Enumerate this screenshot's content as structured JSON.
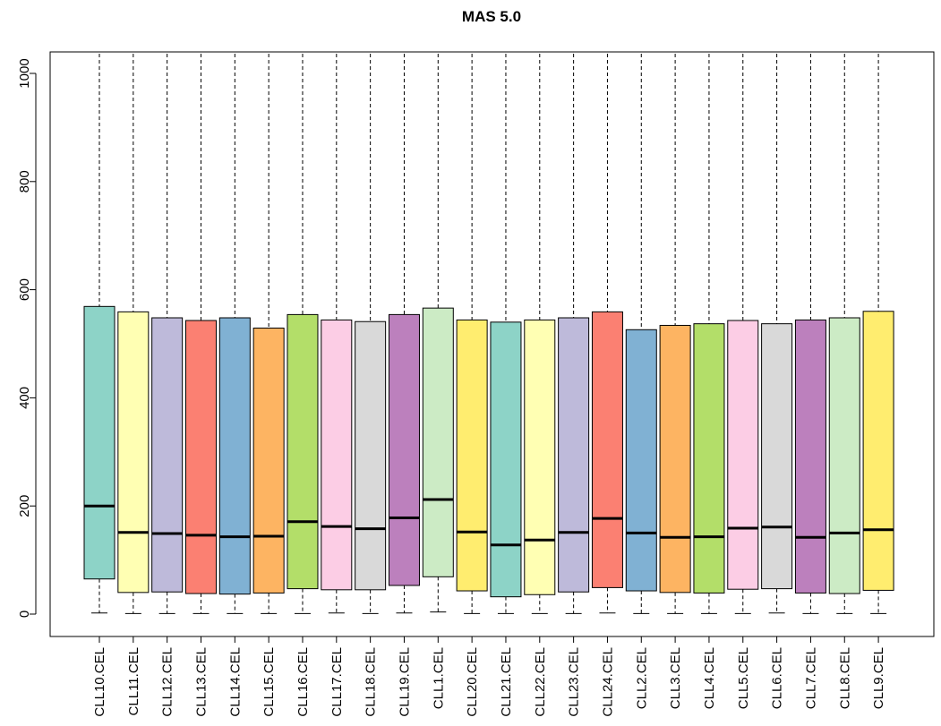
{
  "chart_data": {
    "type": "boxplot",
    "title": "MAS 5.0",
    "xlabel": "",
    "ylabel": "",
    "ylim": [
      -40,
      1040
    ],
    "yticks": [
      0,
      200,
      400,
      600,
      800,
      1000
    ],
    "grid": false,
    "legend": "none",
    "categories": [
      "CLL10.CEL",
      "CLL11.CEL",
      "CLL12.CEL",
      "CLL13.CEL",
      "CLL14.CEL",
      "CLL15.CEL",
      "CLL16.CEL",
      "CLL17.CEL",
      "CLL18.CEL",
      "CLL19.CEL",
      "CLL1.CEL",
      "CLL20.CEL",
      "CLL21.CEL",
      "CLL22.CEL",
      "CLL23.CEL",
      "CLL24.CEL",
      "CLL2.CEL",
      "CLL3.CEL",
      "CLL4.CEL",
      "CLL5.CEL",
      "CLL6.CEL",
      "CLL7.CEL",
      "CLL8.CEL",
      "CLL9.CEL"
    ],
    "boxes": [
      {
        "min": 2,
        "q1": 65,
        "median": 200,
        "q3": 569,
        "max": 1040
      },
      {
        "min": 1,
        "q1": 40,
        "median": 151,
        "q3": 559,
        "max": 1040
      },
      {
        "min": 1,
        "q1": 41,
        "median": 149,
        "q3": 548,
        "max": 1040
      },
      {
        "min": 1,
        "q1": 38,
        "median": 146,
        "q3": 543,
        "max": 1040
      },
      {
        "min": 1,
        "q1": 37,
        "median": 143,
        "q3": 548,
        "max": 1040
      },
      {
        "min": 1,
        "q1": 39,
        "median": 144,
        "q3": 529,
        "max": 1040
      },
      {
        "min": 1,
        "q1": 47,
        "median": 171,
        "q3": 554,
        "max": 1040
      },
      {
        "min": 2,
        "q1": 45,
        "median": 162,
        "q3": 544,
        "max": 1040
      },
      {
        "min": 1,
        "q1": 45,
        "median": 158,
        "q3": 541,
        "max": 1040
      },
      {
        "min": 2,
        "q1": 53,
        "median": 178,
        "q3": 554,
        "max": 1040
      },
      {
        "min": 4,
        "q1": 69,
        "median": 212,
        "q3": 566,
        "max": 1040
      },
      {
        "min": 1,
        "q1": 43,
        "median": 152,
        "q3": 544,
        "max": 1040
      },
      {
        "min": 1,
        "q1": 32,
        "median": 128,
        "q3": 540,
        "max": 1040
      },
      {
        "min": 1,
        "q1": 36,
        "median": 137,
        "q3": 544,
        "max": 1040
      },
      {
        "min": 1,
        "q1": 41,
        "median": 151,
        "q3": 548,
        "max": 1040
      },
      {
        "min": 2,
        "q1": 49,
        "median": 177,
        "q3": 559,
        "max": 1040
      },
      {
        "min": 1,
        "q1": 43,
        "median": 150,
        "q3": 526,
        "max": 1040
      },
      {
        "min": 1,
        "q1": 40,
        "median": 142,
        "q3": 534,
        "max": 1040
      },
      {
        "min": 1,
        "q1": 39,
        "median": 143,
        "q3": 537,
        "max": 1040
      },
      {
        "min": 1,
        "q1": 46,
        "median": 159,
        "q3": 543,
        "max": 1040
      },
      {
        "min": 2,
        "q1": 47,
        "median": 161,
        "q3": 537,
        "max": 1040
      },
      {
        "min": 1,
        "q1": 39,
        "median": 142,
        "q3": 544,
        "max": 1040
      },
      {
        "min": 1,
        "q1": 38,
        "median": 150,
        "q3": 548,
        "max": 1040
      },
      {
        "min": 1,
        "q1": 44,
        "median": 156,
        "q3": 560,
        "max": 1040
      }
    ],
    "colors": [
      "#8DD3C7",
      "#FFFFB3",
      "#BEBADA",
      "#FB8072",
      "#80B1D3",
      "#FDB462",
      "#B3DE69",
      "#FCCDE5",
      "#D9D9D9",
      "#BC80BD",
      "#CCEBC5",
      "#FFED6F"
    ]
  }
}
